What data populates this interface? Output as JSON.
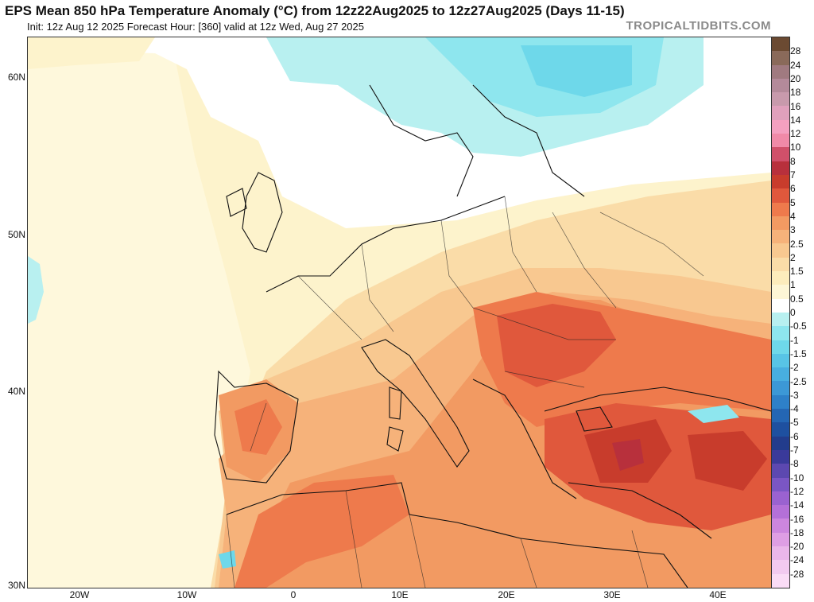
{
  "header": {
    "title": "EPS Mean 850 hPa Temperature Anomaly (°C) from 12z22Aug2025 to 12z27Aug2025 (Days 11-15)",
    "subtitle": "Init: 12z Aug 12 2025   Forecast Hour: [360]   valid at 12z Wed, Aug 27 2025",
    "brand": "TROPICALTIDBITS.COM"
  },
  "map": {
    "lat_labels": [
      "60N",
      "50N",
      "40N",
      "30N"
    ],
    "lon_labels": [
      "20W",
      "10W",
      "0",
      "10E",
      "20E",
      "30E",
      "40E"
    ]
  },
  "colorbar": {
    "labels": [
      "28",
      "24",
      "20",
      "18",
      "16",
      "14",
      "12",
      "10",
      "8",
      "7",
      "6",
      "5",
      "4",
      "3",
      "2.5",
      "2",
      "1.5",
      "1",
      "0.5",
      "0",
      "-0.5",
      "-1",
      "-1.5",
      "-2",
      "-2.5",
      "-3",
      "-4",
      "-5",
      "-6",
      "-7",
      "-8",
      "-10",
      "-12",
      "-14",
      "-16",
      "-18",
      "-20",
      "-24",
      "-28"
    ],
    "colors": [
      "#6b4a32",
      "#8a6a5a",
      "#a07a80",
      "#b48a9a",
      "#c89aac",
      "#e0a0bc",
      "#f4a0c0",
      "#f08aa8",
      "#d0506a",
      "#b8303c",
      "#c83c2c",
      "#e0583c",
      "#ee7a4c",
      "#f29a62",
      "#f6b27a",
      "#f8c890",
      "#fadca8",
      "#fcecbc",
      "#fdf6d6",
      "#ffffff",
      "#b8f0f0",
      "#8ee6ee",
      "#6ed8ea",
      "#58c4e6",
      "#48aee0",
      "#3c98d6",
      "#2e80c8",
      "#2466b4",
      "#1e50a0",
      "#223c8c",
      "#3a3a9a",
      "#5c48b0",
      "#7a56c4",
      "#9a62d0",
      "#b470d8",
      "#cc86de",
      "#de9ee4",
      "#eab6ea",
      "#f2caf0",
      "#fadcf6"
    ]
  }
}
